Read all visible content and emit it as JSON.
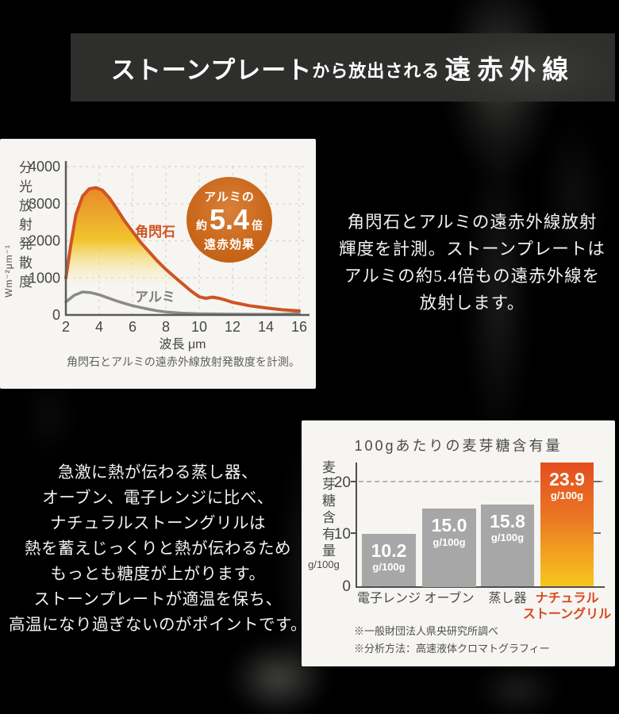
{
  "banner": {
    "title_main": "ストーンプレート",
    "title_connector": "から放出される",
    "title_accent": "遠赤外線"
  },
  "infrared_block": {
    "badge": {
      "top": "アルミの",
      "prefix": "約",
      "value": "5.4",
      "suffix": "倍",
      "bottom": "遠赤効果"
    },
    "description_lines": [
      "角閃石とアルミの遠赤外線放射",
      "輝度を計測。ストーンプレートは",
      "アルミの約5.4倍もの遠赤外線を",
      "放射します。"
    ]
  },
  "maltose_block": {
    "description_lines": [
      "急激に熱が伝わる蒸し器、",
      "オーブン、電子レンジに比べ、",
      "ナチュラルストーングリルは",
      "熱を蓄えじっくりと熱が伝わるため",
      "もっとも糖度が上がります。",
      "ストーンプレートが適温を保ち、",
      "高温になり過ぎないのがポイントです。"
    ]
  },
  "chart_data": [
    {
      "type": "line",
      "title": "",
      "xlabel": "波長 μm",
      "ylabel": "分光放射発散度",
      "ylabel_unit": "Wm⁻²μm⁻¹",
      "caption": "角閃石とアルミの遠赤外線放射発散度を計測。",
      "xlim": [
        2,
        16
      ],
      "ylim": [
        0,
        4000
      ],
      "xticks": [
        2,
        4,
        6,
        8,
        10,
        12,
        14,
        16
      ],
      "yticks": [
        0,
        1000,
        2000,
        3000,
        4000
      ],
      "grid": true,
      "series": [
        {
          "name": "角閃石",
          "color": "#cf5423",
          "area_fill": [
            "#e8872a",
            "#f2c52e",
            "rgba(255,250,220,0)"
          ],
          "x": [
            2,
            2.3,
            2.6,
            3,
            3.4,
            3.8,
            4.2,
            4.6,
            5,
            5.5,
            6,
            6.5,
            7,
            7.5,
            8,
            8.5,
            9,
            9.5,
            10,
            10.4,
            10.8,
            11.2,
            11.6,
            12,
            13,
            14,
            15,
            16
          ],
          "y": [
            1000,
            1900,
            2700,
            3200,
            3400,
            3430,
            3360,
            3160,
            2900,
            2550,
            2250,
            1950,
            1700,
            1450,
            1230,
            1030,
            840,
            650,
            490,
            450,
            480,
            450,
            400,
            340,
            250,
            190,
            140,
            110
          ]
        },
        {
          "name": "アルミ",
          "color": "#8a8a8a",
          "x": [
            2,
            2.5,
            3,
            3.5,
            4,
            4.5,
            5,
            5.5,
            6,
            6.5,
            7,
            7.5,
            8,
            9,
            10,
            11,
            12,
            13,
            14,
            15,
            16
          ],
          "y": [
            350,
            530,
            620,
            600,
            545,
            465,
            385,
            315,
            250,
            198,
            152,
            112,
            82,
            48,
            32,
            25,
            22,
            20,
            18,
            22,
            40
          ]
        }
      ]
    },
    {
      "type": "bar",
      "title": "100gあたりの麦芽糖含有量",
      "ylabel": "麦芽糖含有量",
      "ylabel_unit": "g/100g",
      "categories": [
        "電子レンジ",
        "オーブン",
        "蒸し器",
        "ナチュラルストーングリル"
      ],
      "category_lines": [
        [
          "電子レンジ"
        ],
        [
          "オーブン"
        ],
        [
          "蒸し器"
        ],
        [
          "ナチュラル",
          "ストーングリル"
        ]
      ],
      "values": [
        10.2,
        15.0,
        15.8,
        23.9
      ],
      "value_labels": [
        "10.2",
        "15.0",
        "15.8",
        "23.9"
      ],
      "value_unit": "g/100g",
      "ylim": [
        0,
        24
      ],
      "yticks": [
        0,
        10,
        20
      ],
      "grid": "dashed line at 20 only",
      "bar_color": "#a7a7a7",
      "highlight_index": 3,
      "highlight_gradient": [
        "#e44d1f",
        "#ea7424",
        "#f8c71c"
      ],
      "highlight_label_color": "#d9481c",
      "notes": [
        "※一般財団法人県央研究所調べ",
        "※分析方法：高速液体クロマトグラフィー"
      ]
    }
  ]
}
